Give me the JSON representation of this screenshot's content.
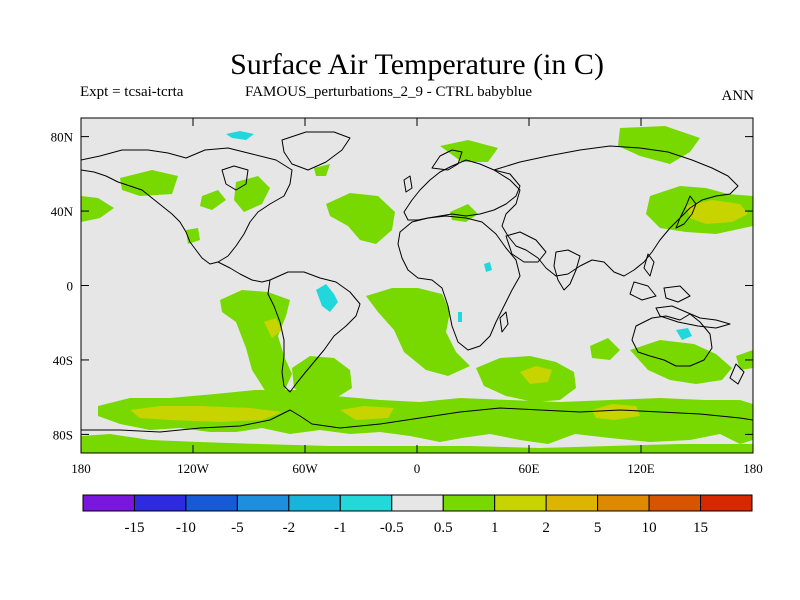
{
  "title": "Surface Air Temperature (in C)",
  "experiment_label": "Expt = tcsai-tcrta",
  "experiment_name": "FAMOUS_perturbations_2_9 - CTRL babyblue",
  "season": "ANN",
  "colors": {
    "background": "#e6e6e6",
    "bin_0.5_1": "#77d900",
    "bin_1_2": "#c8d400",
    "cyan": "#20d8dc",
    "coast": "#000000"
  },
  "map": {
    "lon_range": [
      -180,
      180
    ],
    "lat_range": [
      -90,
      90
    ],
    "lon_ticks": [
      {
        "value": -180,
        "label": "180"
      },
      {
        "value": -120,
        "label": "120W"
      },
      {
        "value": -60,
        "label": "60W"
      },
      {
        "value": 0,
        "label": "0"
      },
      {
        "value": 60,
        "label": "60E"
      },
      {
        "value": 120,
        "label": "120E"
      },
      {
        "value": 180,
        "label": "180"
      }
    ],
    "lat_ticks": [
      {
        "value": 80,
        "label": "80N"
      },
      {
        "value": 40,
        "label": "40N"
      },
      {
        "value": 0,
        "label": "0"
      },
      {
        "value": -40,
        "label": "40S"
      },
      {
        "value": -80,
        "label": "80S"
      }
    ]
  },
  "colorbar": {
    "colors": [
      "#7a17de",
      "#2e2adf",
      "#175ad6",
      "#1d8fdc",
      "#18b4dc",
      "#22d8d8",
      "#e6e6e6",
      "#77d900",
      "#c8d400",
      "#ddb500",
      "#dd8a00",
      "#d85500",
      "#d82800"
    ],
    "labels": [
      "-15",
      "-10",
      "-5",
      "-2",
      "-1",
      "-0.5",
      "0.5",
      "1",
      "2",
      "5",
      "10",
      "15"
    ]
  }
}
